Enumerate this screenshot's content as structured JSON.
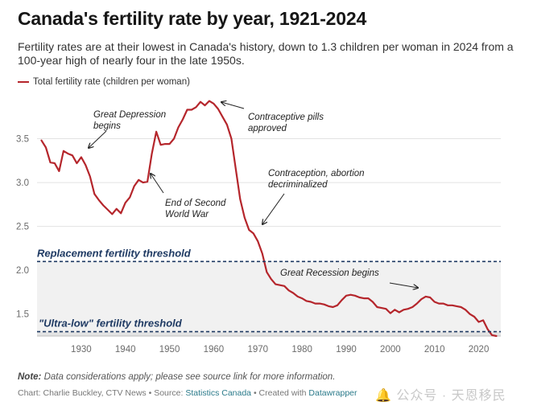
{
  "title": "Canada's fertility rate by year, 1921-2024",
  "subtitle": "Fertility rates are at their lowest in Canada's history, down to 1.3 children per woman in 2024 from a 100-year high of nearly four in the late 1950s.",
  "note": {
    "label": "Note:",
    "text": "Data considerations apply; please see source link for more information."
  },
  "credit": {
    "chart": "Chart: Charlie Buckley, CTV News",
    "sep1": " • Source: ",
    "source": "Statistics Canada",
    "sep2": " • Created with ",
    "tool": "Datawrapper"
  },
  "watermark": "🔔 公众号 · 天恩移民",
  "colors": {
    "line": "#b5262c",
    "threshold": "#1f3a63",
    "band": "#eeeeee"
  },
  "chart_data": {
    "type": "line",
    "title": "Canada's fertility rate by year, 1921-2024",
    "xlabel": "",
    "ylabel": "",
    "xlim": [
      1920,
      2025
    ],
    "ylim": [
      1.25,
      4.0
    ],
    "xticks": [
      1930,
      1940,
      1950,
      1960,
      1970,
      1980,
      1990,
      2000,
      2010,
      2020
    ],
    "yticks": [
      1.5,
      2.0,
      2.5,
      3.0,
      3.5
    ],
    "grid": true,
    "legend": "top-left",
    "series": [
      {
        "name": "Total fertility rate (children per woman)",
        "x": [
          1921,
          1922,
          1923,
          1924,
          1925,
          1926,
          1927,
          1928,
          1929,
          1930,
          1931,
          1932,
          1933,
          1934,
          1935,
          1936,
          1937,
          1938,
          1939,
          1940,
          1941,
          1942,
          1943,
          1944,
          1945,
          1946,
          1947,
          1948,
          1949,
          1950,
          1951,
          1952,
          1953,
          1954,
          1955,
          1956,
          1957,
          1958,
          1959,
          1960,
          1961,
          1962,
          1963,
          1964,
          1965,
          1966,
          1967,
          1968,
          1969,
          1970,
          1971,
          1972,
          1973,
          1974,
          1975,
          1976,
          1977,
          1978,
          1979,
          1980,
          1981,
          1982,
          1983,
          1984,
          1985,
          1986,
          1987,
          1988,
          1989,
          1990,
          1991,
          1992,
          1993,
          1994,
          1995,
          1996,
          1997,
          1998,
          1999,
          2000,
          2001,
          2002,
          2003,
          2004,
          2005,
          2006,
          2007,
          2008,
          2009,
          2010,
          2011,
          2012,
          2013,
          2014,
          2015,
          2016,
          2017,
          2018,
          2019,
          2020,
          2021,
          2022,
          2023,
          2024
        ],
        "y": [
          3.48,
          3.4,
          3.23,
          3.22,
          3.13,
          3.36,
          3.33,
          3.31,
          3.22,
          3.29,
          3.2,
          3.07,
          2.87,
          2.8,
          2.74,
          2.69,
          2.64,
          2.7,
          2.65,
          2.77,
          2.83,
          2.96,
          3.03,
          3.0,
          3.01,
          3.33,
          3.58,
          3.43,
          3.44,
          3.44,
          3.5,
          3.63,
          3.72,
          3.83,
          3.83,
          3.86,
          3.92,
          3.88,
          3.93,
          3.9,
          3.84,
          3.75,
          3.66,
          3.5,
          3.15,
          2.81,
          2.6,
          2.46,
          2.42,
          2.33,
          2.19,
          1.98,
          1.9,
          1.84,
          1.83,
          1.82,
          1.77,
          1.74,
          1.7,
          1.68,
          1.65,
          1.64,
          1.62,
          1.62,
          1.61,
          1.59,
          1.58,
          1.6,
          1.66,
          1.71,
          1.72,
          1.71,
          1.69,
          1.68,
          1.68,
          1.64,
          1.58,
          1.57,
          1.56,
          1.51,
          1.55,
          1.52,
          1.55,
          1.56,
          1.58,
          1.62,
          1.67,
          1.7,
          1.69,
          1.64,
          1.62,
          1.62,
          1.6,
          1.6,
          1.59,
          1.58,
          1.55,
          1.5,
          1.47,
          1.41,
          1.43,
          1.33,
          1.26,
          1.25
        ]
      }
    ],
    "thresholds": [
      {
        "label": "Replacement fertility threshold",
        "value": 2.1
      },
      {
        "label": "\"Ultra-low\" fertility threshold",
        "value": 1.3
      }
    ],
    "annotations": [
      {
        "id": "depression",
        "lines": [
          "Great Depression",
          "begins"
        ]
      },
      {
        "id": "ww2",
        "lines": [
          "End of Second",
          "World War"
        ]
      },
      {
        "id": "pill",
        "lines": [
          "Contraceptive pills",
          "approved"
        ]
      },
      {
        "id": "decrim",
        "lines": [
          "Contraception, abortion",
          "decriminalized"
        ]
      },
      {
        "id": "recession",
        "lines": [
          "Great Recession begins"
        ]
      }
    ]
  }
}
